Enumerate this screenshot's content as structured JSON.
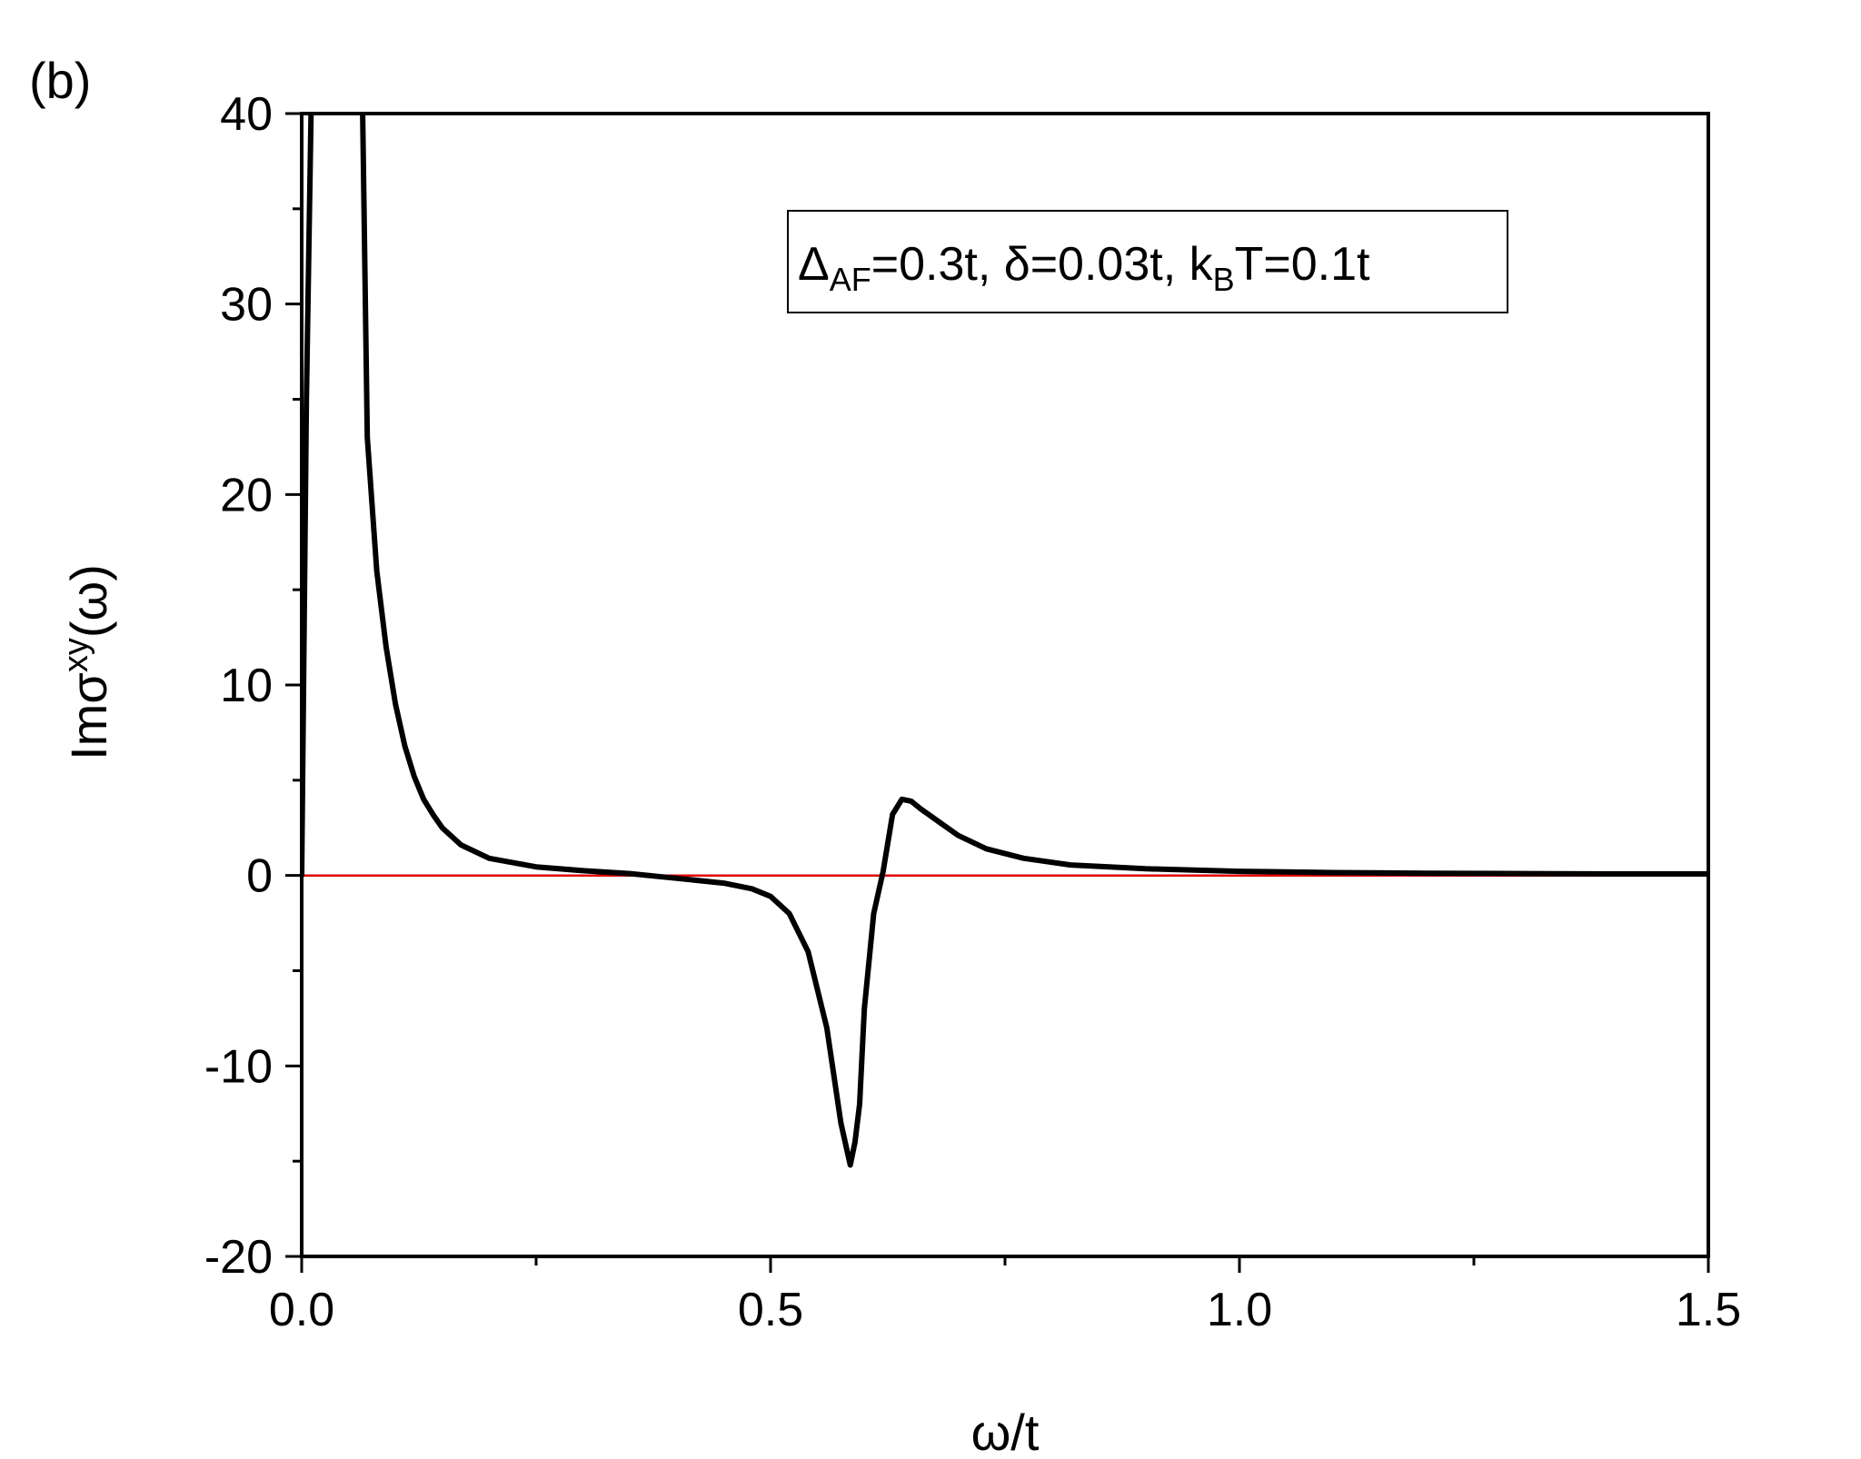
{
  "panel_label": "(b)",
  "chart_data": {
    "type": "line",
    "xlabel": "ω/t",
    "ylabel": {
      "base": "Imσ",
      "sup": "xy",
      "tail": "(ω)"
    },
    "xlim": [
      0.0,
      1.5
    ],
    "ylim": [
      -20,
      40
    ],
    "xticks": [
      "0.0",
      "0.5",
      "1.0",
      "1.5"
    ],
    "yticks": [
      "-20",
      "-10",
      "0",
      "10",
      "20",
      "30",
      "40"
    ],
    "annotation": {
      "parts": [
        {
          "t": "Δ",
          "sub": false
        },
        {
          "t": "AF",
          "sub": true
        },
        {
          "t": "=0.3t, δ=0.03t, k",
          "sub": false
        },
        {
          "t": "B",
          "sub": true
        },
        {
          "t": "T=0.1t",
          "sub": false
        }
      ]
    },
    "series": [
      {
        "color": "#000000",
        "x": [
          0.0,
          0.005,
          0.01,
          0.015,
          0.02,
          0.06,
          0.065,
          0.07,
          0.08,
          0.09,
          0.1,
          0.11,
          0.12,
          0.13,
          0.14,
          0.15,
          0.17,
          0.2,
          0.25,
          0.3,
          0.35,
          0.4,
          0.45,
          0.48,
          0.5,
          0.52,
          0.54,
          0.56,
          0.575,
          0.585,
          0.59,
          0.595,
          0.6,
          0.61,
          0.62,
          0.63,
          0.64,
          0.65,
          0.66,
          0.68,
          0.7,
          0.73,
          0.77,
          0.82,
          0.9,
          1.0,
          1.1,
          1.2,
          1.3,
          1.4,
          1.5
        ],
        "y": [
          0.0,
          25.0,
          40.0,
          45.0,
          50.0,
          50.0,
          40.0,
          23.0,
          16.0,
          12.0,
          9.0,
          6.8,
          5.2,
          4.0,
          3.2,
          2.5,
          1.6,
          0.9,
          0.45,
          0.25,
          0.1,
          -0.15,
          -0.4,
          -0.7,
          -1.1,
          -2.0,
          -4.0,
          -8.0,
          -13.0,
          -15.2,
          -14.0,
          -12.0,
          -7.0,
          -2.0,
          0.2,
          3.2,
          4.0,
          3.9,
          3.5,
          2.8,
          2.1,
          1.4,
          0.9,
          0.55,
          0.35,
          0.22,
          0.15,
          0.12,
          0.1,
          0.08,
          0.08
        ]
      },
      {
        "color": "#e00000",
        "x": [
          0.0,
          1.5
        ],
        "y": [
          0.0,
          0.0
        ]
      }
    ]
  }
}
